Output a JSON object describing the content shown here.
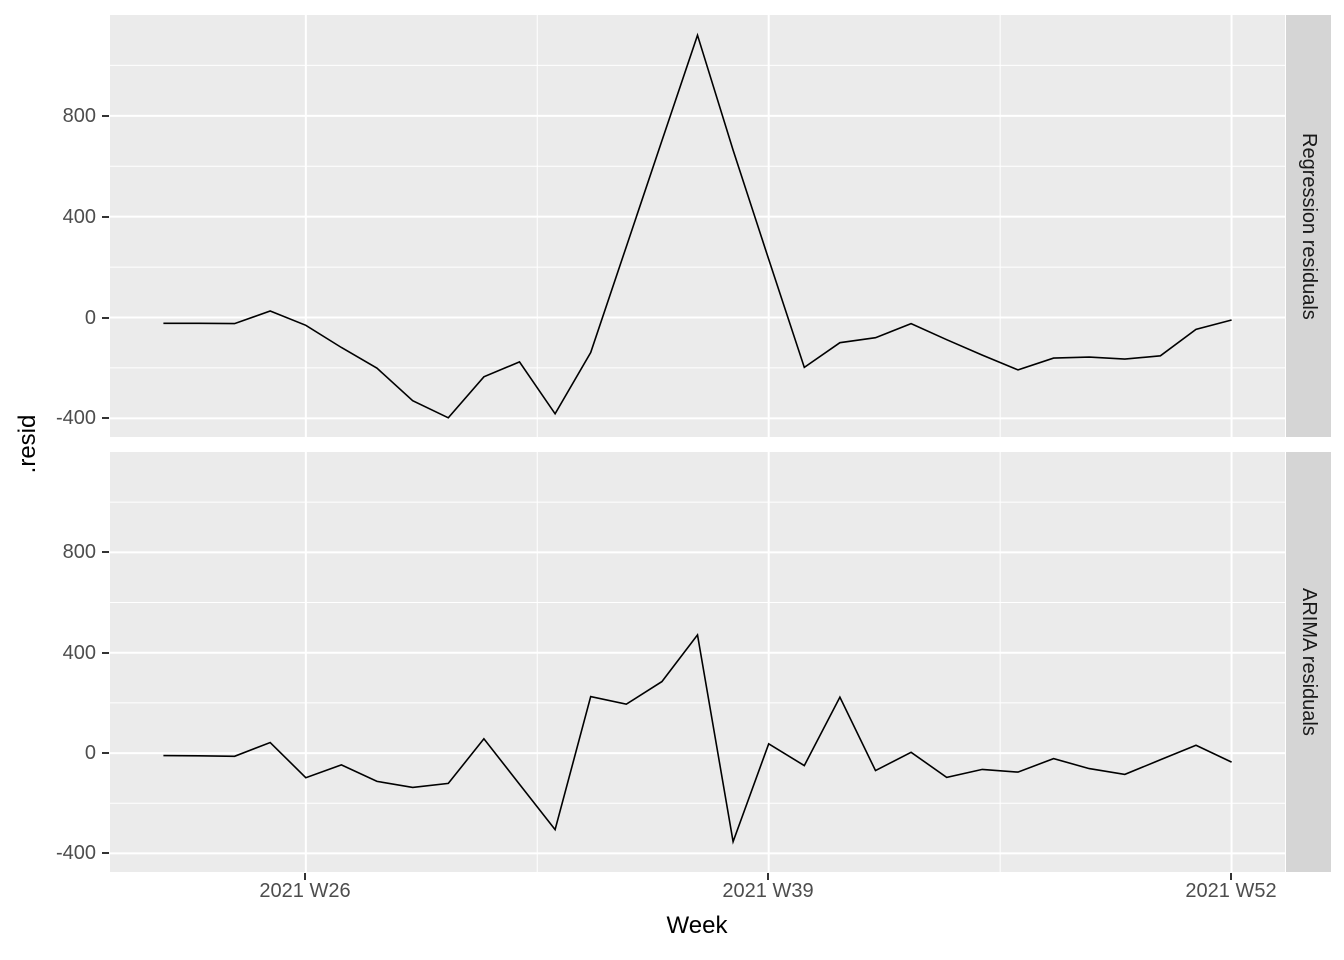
{
  "figure": {
    "background": "#FFFFFF",
    "panel_background": "#EBEBEB",
    "strip_background": "#D5D5D5",
    "grid_color": "#FFFFFF",
    "line_color": "#000000",
    "tick_text_color": "#4D4D4D",
    "tick_mark_color": "#333333"
  },
  "y_axis": {
    "title": ".resid",
    "ticks": [
      "800",
      "400",
      "0",
      "-400"
    ]
  },
  "x_axis": {
    "title": "Week",
    "ticks": [
      "2021 W26",
      "2021 W39",
      "2021 W52"
    ]
  },
  "facets": [
    {
      "label": "Regression residuals"
    },
    {
      "label": "ARIMA residuals"
    }
  ],
  "chart_data": {
    "type": "line",
    "title": "",
    "xlabel": "Week",
    "ylabel": ".resid",
    "legend": "none",
    "grid": "on",
    "facet_layout": "rows",
    "x_unit": "ISO week of 2021",
    "weeks": [
      22,
      23,
      24,
      25,
      26,
      27,
      28,
      29,
      30,
      31,
      32,
      33,
      34,
      35,
      36,
      37,
      38,
      39,
      40,
      41,
      42,
      43,
      44,
      45,
      46,
      47,
      48,
      49,
      50,
      51,
      52
    ],
    "x_tick_weeks": [
      26,
      39,
      52
    ],
    "x_tick_labels": [
      "2021 W26",
      "2021 W39",
      "2021 W52"
    ],
    "x_minor_weeks": [
      32.5,
      45.5
    ],
    "xlim_weeks": [
      20.5,
      53.5
    ],
    "y_major": [
      -400,
      0,
      400,
      800
    ],
    "y_minor": [
      -200,
      200,
      600,
      1000
    ],
    "ylim": [
      -474,
      1200
    ],
    "series": [
      {
        "name": "Regression residuals",
        "values": [
          -23,
          -23,
          -24,
          26,
          -31,
          -119,
          -201,
          -330,
          -398,
          -235,
          -176,
          -382,
          -139,
          281,
          701,
          1120,
          664,
          231,
          -198,
          -100,
          -80,
          -24,
          -88,
          -149,
          -208,
          -161,
          -157,
          -165,
          -152,
          -47,
          -10
        ]
      },
      {
        "name": "ARIMA residuals",
        "values": [
          -10,
          -11,
          -13,
          42,
          -98,
          -47,
          -113,
          -137,
          -121,
          57,
          -124,
          -305,
          225,
          195,
          285,
          471,
          -353,
          37,
          -50,
          223,
          -70,
          3,
          -97,
          -65,
          -76,
          -22,
          -62,
          -85,
          -27,
          31,
          -36
        ]
      }
    ]
  }
}
